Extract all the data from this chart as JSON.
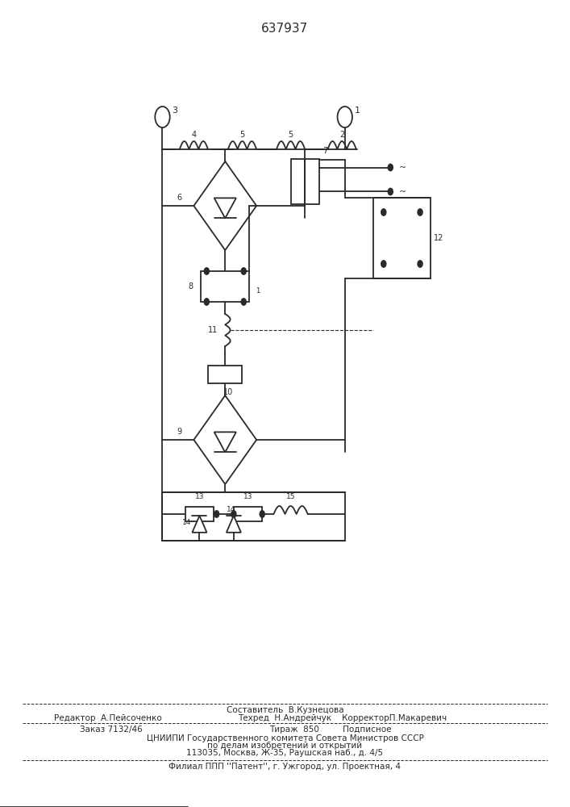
{
  "title": "637937",
  "bg_color": "#ffffff",
  "line_color": "#2a2a2a",
  "line_width": 1.3,
  "figsize": [
    7.07,
    10.0
  ],
  "dpi": 100,
  "footer": {
    "line1": "Составитель  В.Кузнецова",
    "line2a": "Редактор  А.Пейсоченко",
    "line2b": "Техред  Н.Андрейчук    КорректорП.Макаревич",
    "line3a": "Заказ 7132/46",
    "line3b": "Тираж  850         Подписное",
    "line4": "ЦНИИПИ Государственного комитета Совета Министров СССР",
    "line5": "по делам изобретений и открытий",
    "line6": "113035, Москва, Ж-35, Раушская наб., д. 4/5",
    "line7": "Филиал ППП ''Патент'', г. Ужгород, ул. Проектная, 4"
  }
}
